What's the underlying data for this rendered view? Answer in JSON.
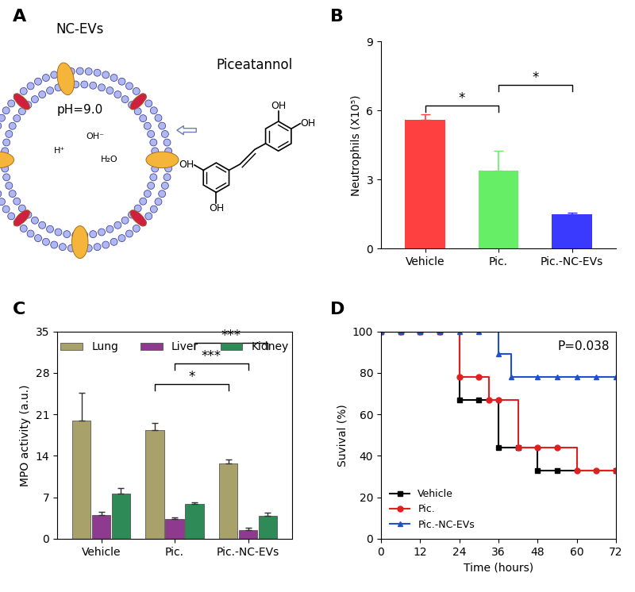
{
  "diagram": {
    "panel": "A",
    "label": "NC-EVs",
    "ph": "pH=9.0",
    "molecule": "Piceatannol",
    "groups": [
      "OH",
      "OH",
      "OH",
      "OH"
    ],
    "reaction": [
      "H⁺",
      "OH⁻",
      "H₂O"
    ]
  },
  "chart_data": [
    {
      "type": "bar",
      "title": "B",
      "y_label": "Neutrophils (X10⁵)",
      "categories": [
        "Vehicle",
        "Pic.",
        "Pic.-NC-EVs"
      ],
      "values": [
        5.6,
        3.4,
        1.5
      ],
      "errors": [
        0.25,
        0.85,
        0.05
      ],
      "colors": [
        "#ff4040",
        "#66ee66",
        "#3a3aff"
      ],
      "ylim": [
        0,
        9
      ],
      "yticks": [
        0,
        3,
        6,
        9
      ],
      "annotations": [
        {
          "between": [
            "Vehicle",
            "Pic."
          ],
          "text": "*"
        },
        {
          "between": [
            "Pic.",
            "Pic.-NC-EVs"
          ],
          "text": "*"
        }
      ]
    },
    {
      "type": "bar",
      "title": "C",
      "y_label": "MPO activity (a.u.)",
      "categories": [
        "Vehicle",
        "Pic.",
        "Pic.-NC-EVs"
      ],
      "series": [
        {
          "name": "Lung",
          "color": "#a8a26a",
          "values": [
            20.0,
            18.3,
            12.7
          ],
          "errors": [
            4.7,
            1.3,
            0.7
          ]
        },
        {
          "name": "Liver",
          "color": "#8e3a8e",
          "values": [
            4.0,
            3.3,
            1.5
          ],
          "errors": [
            0.5,
            0.3,
            0.4
          ]
        },
        {
          "name": "Kidney",
          "color": "#2e8b57",
          "values": [
            7.6,
            5.9,
            3.9
          ],
          "errors": [
            0.9,
            0.2,
            0.5
          ]
        }
      ],
      "ylim": [
        0,
        35
      ],
      "yticks": [
        0,
        7,
        14,
        21,
        28,
        35
      ],
      "legend": "upper center",
      "annotations": [
        {
          "between": [
            "Pic.",
            "Pic.-NC-EVs"
          ],
          "series": "Lung",
          "text": "*"
        },
        {
          "between": [
            "Pic.",
            "Pic.-NC-EVs"
          ],
          "series": "Liver",
          "text": "***"
        },
        {
          "between": [
            "Pic.",
            "Pic.-NC-EVs"
          ],
          "series": "Kidney",
          "text": "***"
        }
      ]
    },
    {
      "type": "line",
      "title": "D",
      "x_label": "Time (hours)",
      "y_label": "Suvival (%)",
      "series": [
        {
          "name": "Vehicle",
          "color": "#000000",
          "marker": "square",
          "x": [
            0,
            6,
            12,
            18,
            24,
            30,
            36,
            42,
            48,
            54,
            72
          ],
          "values": [
            100,
            100,
            100,
            100,
            67,
            67,
            44,
            44,
            33,
            33,
            33
          ]
        },
        {
          "name": "Pic.",
          "color": "#e02020",
          "marker": "circle",
          "x": [
            0,
            6,
            12,
            18,
            24,
            30,
            33,
            36,
            42,
            48,
            54,
            60,
            66,
            72
          ],
          "values": [
            100,
            100,
            100,
            100,
            78,
            78,
            67,
            67,
            44,
            44,
            44,
            33,
            33,
            33
          ]
        },
        {
          "name": "Pic.-NC-EVs",
          "color": "#2050d0",
          "marker": "triangle",
          "x": [
            0,
            6,
            12,
            18,
            24,
            30,
            36,
            40,
            48,
            54,
            60,
            66,
            72
          ],
          "values": [
            100,
            100,
            100,
            100,
            100,
            100,
            89,
            78,
            78,
            78,
            78,
            78,
            78
          ]
        }
      ],
      "xlim": [
        0,
        72
      ],
      "xticks": [
        0,
        12,
        24,
        36,
        48,
        60,
        72
      ],
      "ylim": [
        0,
        100
      ],
      "yticks": [
        0,
        20,
        40,
        60,
        80,
        100
      ],
      "legend": "lower left",
      "annotations": [
        {
          "text": "P=0.038"
        }
      ]
    }
  ]
}
